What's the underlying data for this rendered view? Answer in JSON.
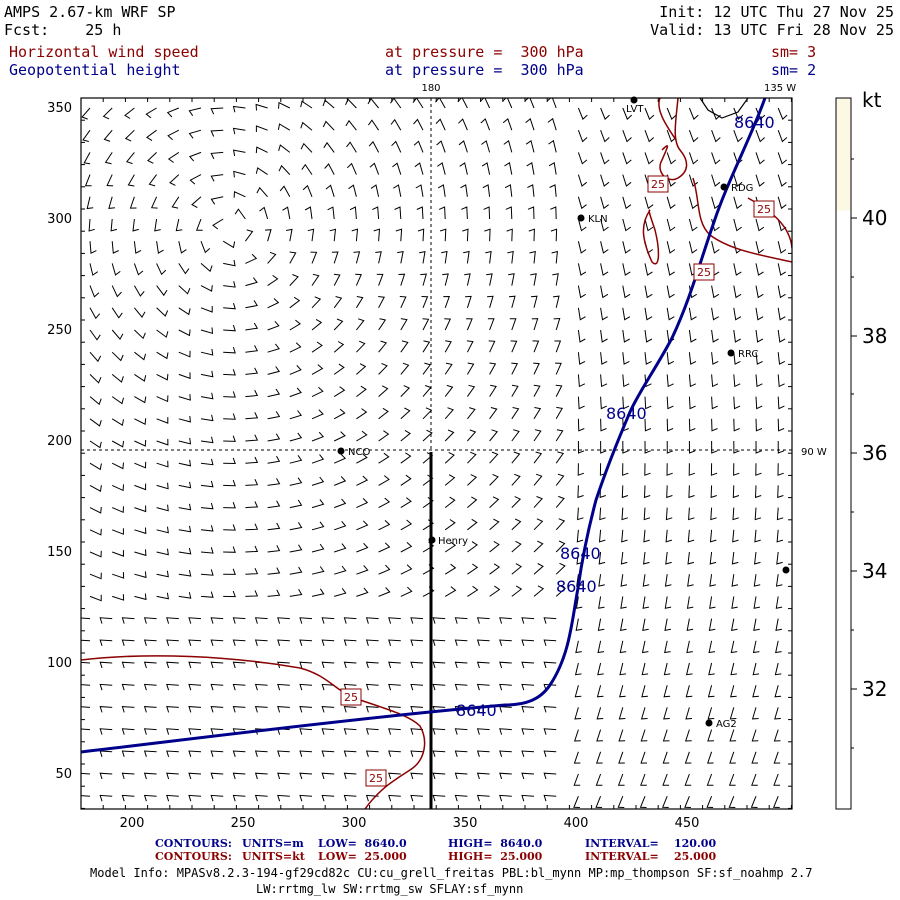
{
  "header": {
    "model": "AMPS 2.67-km WRF SP",
    "fcst": "Fcst:    25 h",
    "init": "Init: 12 UTC Thu 27 Nov 25",
    "valid": "Valid: 13 UTC Fri 28 Nov 25",
    "field1": "Horizontal wind speed",
    "field1_level": "at pressure =  300 hPa",
    "field1_sm": "sm= 3",
    "field2": "Geopotential height",
    "field2_level": "at pressure =  300 hPa",
    "field2_sm": "sm= 2"
  },
  "map": {
    "x_ticks": [
      "200",
      "250",
      "300",
      "350",
      "400",
      "450"
    ],
    "y_ticks": [
      "350",
      "300",
      "250",
      "200",
      "150",
      "100",
      "50"
    ],
    "lon_top_180": "180",
    "lon_top_135w": "135 W",
    "lon_right_90w": "90 W",
    "stations": [
      "LVT",
      "RDG",
      "KLN",
      "RRC",
      "NCO",
      "Henry",
      "AG2"
    ],
    "height_contour_label": "8640",
    "wind_contour_label": "25"
  },
  "colorbar": {
    "unit": "kt",
    "labels": [
      "40",
      "38",
      "36",
      "34",
      "32"
    ],
    "fill_color": "#fdf8e4"
  },
  "footer": {
    "line1_label": "CONTOURS:",
    "line1_units": "UNITS=m",
    "line1_low": "LOW=  8640.0",
    "line1_high": "HIGH=  8640.0",
    "line1_interval": "INTERVAL=    120.00",
    "line2_label": "CONTOURS:",
    "line2_units": "UNITS=kt",
    "line2_low": "LOW=  25.000",
    "line2_high": "HIGH=  25.000",
    "line2_interval": "INTERVAL=    25.000",
    "model_info_1": "Model Info: MPASv8.2.3-194-gf29cd82c CU:cu_grell_freitas PBL:bl_mynn MP:mp_thompson SF:sf_noahmp 2.7",
    "model_info_2": "LW:rrtmg_lw SW:rrtmg_sw SFLAY:sf_mynn"
  },
  "colors": {
    "height_contour": "#00008b",
    "wind_contour": "#8b0000"
  }
}
